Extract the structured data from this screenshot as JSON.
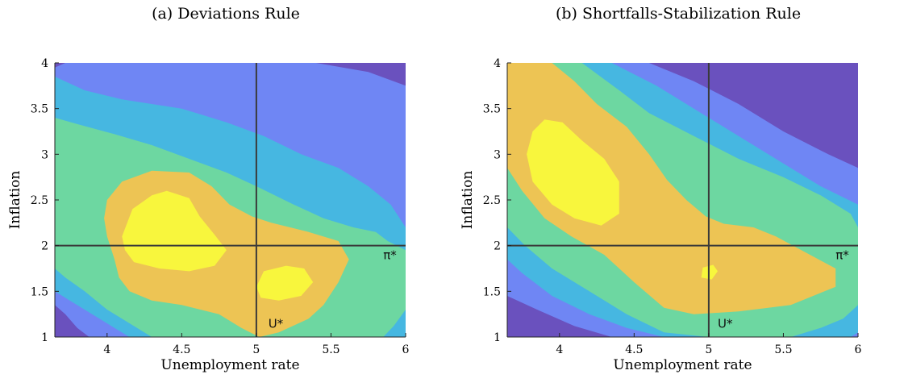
{
  "chart_data": [
    {
      "panel": "a",
      "type": "contour",
      "title": "(a) Deviations Rule",
      "xlabel": "Unemployment rate",
      "ylabel": "Inflation",
      "xlim": [
        3.65,
        6
      ],
      "ylim": [
        1,
        4
      ],
      "xticks": [
        4,
        4.5,
        5,
        5.5,
        6
      ],
      "yticks": [
        1,
        1.5,
        2,
        2.5,
        3,
        3.5,
        4
      ],
      "reference_lines": {
        "x": 5,
        "y": 2
      },
      "reference_labels": [
        {
          "text": "U*",
          "x": 5.08,
          "y": 1.1
        },
        {
          "text": "π*",
          "x": 5.85,
          "y": 1.85
        }
      ],
      "levels_colors": [
        "#6a51be",
        "#6f86f4",
        "#46b7e1",
        "#6dd7a1",
        "#edc454",
        "#f8f63d"
      ],
      "regions": [
        {
          "level": 0,
          "polygon": [
            [
              3.65,
              1
            ],
            [
              6,
              1
            ],
            [
              6,
              4
            ],
            [
              3.65,
              4
            ]
          ]
        },
        {
          "level": 1,
          "polygon": [
            [
              3.72,
              4
            ],
            [
              5.4,
              4
            ],
            [
              5.75,
              3.9
            ],
            [
              6,
              3.75
            ],
            [
              6,
              1
            ],
            [
              3.88,
              1
            ],
            [
              3.8,
              1.1
            ],
            [
              3.72,
              1.25
            ],
            [
              3.65,
              1.35
            ],
            [
              3.65,
              3.95
            ]
          ]
        },
        {
          "level": 2,
          "polygon": [
            [
              3.65,
              3.85
            ],
            [
              3.85,
              3.7
            ],
            [
              4.1,
              3.6
            ],
            [
              4.5,
              3.5
            ],
            [
              4.8,
              3.35
            ],
            [
              5.05,
              3.2
            ],
            [
              5.3,
              3.0
            ],
            [
              5.55,
              2.85
            ],
            [
              5.75,
              2.65
            ],
            [
              5.9,
              2.45
            ],
            [
              6,
              2.2
            ],
            [
              6,
              1
            ],
            [
              4.15,
              1
            ],
            [
              4.05,
              1.1
            ],
            [
              3.9,
              1.25
            ],
            [
              3.75,
              1.4
            ],
            [
              3.65,
              1.5
            ]
          ]
        },
        {
          "level": 3,
          "polygon": [
            [
              3.65,
              3.4
            ],
            [
              3.8,
              3.33
            ],
            [
              4.05,
              3.22
            ],
            [
              4.3,
              3.1
            ],
            [
              4.55,
              2.95
            ],
            [
              4.8,
              2.8
            ],
            [
              5.0,
              2.65
            ],
            [
              5.25,
              2.45
            ],
            [
              5.45,
              2.3
            ],
            [
              5.65,
              2.2
            ],
            [
              5.8,
              2.15
            ],
            [
              5.88,
              2.05
            ],
            [
              6,
              1.95
            ],
            [
              6,
              1.3
            ],
            [
              5.92,
              1.12
            ],
            [
              5.85,
              1
            ],
            [
              4.3,
              1
            ],
            [
              4.15,
              1.15
            ],
            [
              4.0,
              1.3
            ],
            [
              3.85,
              1.5
            ],
            [
              3.72,
              1.65
            ],
            [
              3.65,
              1.75
            ]
          ]
        },
        {
          "level": 4,
          "polygon": [
            [
              4.0,
              2.5
            ],
            [
              4.1,
              2.7
            ],
            [
              4.3,
              2.82
            ],
            [
              4.55,
              2.8
            ],
            [
              4.7,
              2.65
            ],
            [
              4.82,
              2.45
            ],
            [
              4.97,
              2.32
            ],
            [
              5.1,
              2.25
            ],
            [
              5.35,
              2.15
            ],
            [
              5.55,
              2.05
            ],
            [
              5.62,
              1.85
            ],
            [
              5.55,
              1.6
            ],
            [
              5.45,
              1.35
            ],
            [
              5.35,
              1.2
            ],
            [
              5.15,
              1.05
            ],
            [
              5.02,
              1
            ],
            [
              4.9,
              1.1
            ],
            [
              4.75,
              1.25
            ],
            [
              4.5,
              1.35
            ],
            [
              4.3,
              1.4
            ],
            [
              4.15,
              1.5
            ],
            [
              4.08,
              1.65
            ],
            [
              4.05,
              1.85
            ],
            [
              4.0,
              2.1
            ],
            [
              3.98,
              2.3
            ]
          ]
        },
        {
          "level": 5,
          "polygon": [
            [
              4.1,
              2.1
            ],
            [
              4.17,
              2.4
            ],
            [
              4.3,
              2.55
            ],
            [
              4.4,
              2.6
            ],
            [
              4.55,
              2.52
            ],
            [
              4.62,
              2.32
            ],
            [
              4.72,
              2.12
            ],
            [
              4.8,
              1.95
            ],
            [
              4.72,
              1.78
            ],
            [
              4.55,
              1.72
            ],
            [
              4.35,
              1.75
            ],
            [
              4.18,
              1.82
            ],
            [
              4.12,
              1.95
            ]
          ]
        },
        {
          "level": 5,
          "polygon": [
            [
              5.0,
              1.55
            ],
            [
              5.05,
              1.72
            ],
            [
              5.2,
              1.78
            ],
            [
              5.32,
              1.75
            ],
            [
              5.38,
              1.6
            ],
            [
              5.3,
              1.45
            ],
            [
              5.15,
              1.4
            ],
            [
              5.03,
              1.43
            ]
          ]
        }
      ]
    },
    {
      "panel": "b",
      "type": "contour",
      "title": "(b) Shortfalls-Stabilization Rule",
      "xlabel": "Unemployment rate",
      "ylabel": "Inflation",
      "xlim": [
        3.65,
        6
      ],
      "ylim": [
        1,
        4
      ],
      "xticks": [
        4,
        4.5,
        5,
        5.5,
        6
      ],
      "yticks": [
        1,
        1.5,
        2,
        2.5,
        3,
        3.5,
        4
      ],
      "reference_lines": {
        "x": 5,
        "y": 2
      },
      "reference_labels": [
        {
          "text": "U*",
          "x": 5.06,
          "y": 1.1
        },
        {
          "text": "π*",
          "x": 5.85,
          "y": 1.85
        }
      ],
      "levels_colors": [
        "#6a51be",
        "#6f86f4",
        "#46b7e1",
        "#6dd7a1",
        "#edc454",
        "#f8f63d"
      ],
      "regions": [
        {
          "level": 0,
          "polygon": [
            [
              3.65,
              1
            ],
            [
              6,
              1
            ],
            [
              6,
              4
            ],
            [
              3.65,
              4
            ]
          ]
        },
        {
          "level": 1,
          "polygon": [
            [
              3.65,
              4
            ],
            [
              4.6,
              4
            ],
            [
              4.9,
              3.8
            ],
            [
              5.2,
              3.55
            ],
            [
              5.5,
              3.25
            ],
            [
              5.8,
              3.0
            ],
            [
              6,
              2.85
            ],
            [
              6,
              1
            ],
            [
              4.35,
              1
            ],
            [
              4.1,
              1.12
            ],
            [
              3.85,
              1.3
            ],
            [
              3.65,
              1.45
            ]
          ]
        },
        {
          "level": 2,
          "polygon": [
            [
              3.65,
              4
            ],
            [
              4.35,
              4
            ],
            [
              4.65,
              3.75
            ],
            [
              4.9,
              3.5
            ],
            [
              5.2,
              3.2
            ],
            [
              5.5,
              2.9
            ],
            [
              5.75,
              2.65
            ],
            [
              6,
              2.45
            ],
            [
              6,
              1.05
            ],
            [
              5.95,
              1
            ],
            [
              4.7,
              1
            ],
            [
              4.45,
              1.1
            ],
            [
              4.2,
              1.25
            ],
            [
              3.95,
              1.45
            ],
            [
              3.75,
              1.7
            ],
            [
              3.65,
              1.85
            ]
          ]
        },
        {
          "level": 3,
          "polygon": [
            [
              3.65,
              4
            ],
            [
              4.15,
              4
            ],
            [
              4.4,
              3.7
            ],
            [
              4.6,
              3.45
            ],
            [
              4.9,
              3.2
            ],
            [
              5.2,
              2.95
            ],
            [
              5.5,
              2.75
            ],
            [
              5.75,
              2.55
            ],
            [
              5.95,
              2.35
            ],
            [
              6,
              2.2
            ],
            [
              6,
              1.35
            ],
            [
              5.9,
              1.2
            ],
            [
              5.75,
              1.1
            ],
            [
              5.55,
              1.0
            ],
            [
              5.0,
              1.0
            ],
            [
              4.7,
              1.05
            ],
            [
              4.45,
              1.25
            ],
            [
              4.2,
              1.5
            ],
            [
              3.95,
              1.75
            ],
            [
              3.77,
              2.0
            ],
            [
              3.65,
              2.2
            ]
          ]
        },
        {
          "level": 4,
          "polygon": [
            [
              3.65,
              4
            ],
            [
              3.95,
              4
            ],
            [
              4.1,
              3.8
            ],
            [
              4.25,
              3.55
            ],
            [
              4.45,
              3.3
            ],
            [
              4.6,
              3.0
            ],
            [
              4.72,
              2.72
            ],
            [
              4.85,
              2.5
            ],
            [
              4.98,
              2.32
            ],
            [
              5.1,
              2.24
            ],
            [
              5.3,
              2.2
            ],
            [
              5.45,
              2.1
            ],
            [
              5.62,
              1.95
            ],
            [
              5.85,
              1.75
            ],
            [
              5.85,
              1.55
            ],
            [
              5.55,
              1.35
            ],
            [
              5.2,
              1.28
            ],
            [
              4.9,
              1.25
            ],
            [
              4.7,
              1.32
            ],
            [
              4.5,
              1.6
            ],
            [
              4.3,
              1.9
            ],
            [
              4.08,
              2.1
            ],
            [
              3.9,
              2.3
            ],
            [
              3.75,
              2.6
            ],
            [
              3.65,
              2.85
            ]
          ]
        },
        {
          "level": 5,
          "polygon": [
            [
              3.78,
              3.0
            ],
            [
              3.82,
              3.25
            ],
            [
              3.9,
              3.38
            ],
            [
              4.02,
              3.35
            ],
            [
              4.15,
              3.15
            ],
            [
              4.3,
              2.95
            ],
            [
              4.4,
              2.7
            ],
            [
              4.4,
              2.35
            ],
            [
              4.28,
              2.22
            ],
            [
              4.1,
              2.3
            ],
            [
              3.95,
              2.45
            ],
            [
              3.82,
              2.7
            ]
          ]
        },
        {
          "level": 5,
          "polygon": [
            [
              4.95,
              1.65
            ],
            [
              4.96,
              1.76
            ],
            [
              5.03,
              1.79
            ],
            [
              5.06,
              1.72
            ],
            [
              5.02,
              1.63
            ]
          ]
        }
      ]
    }
  ]
}
